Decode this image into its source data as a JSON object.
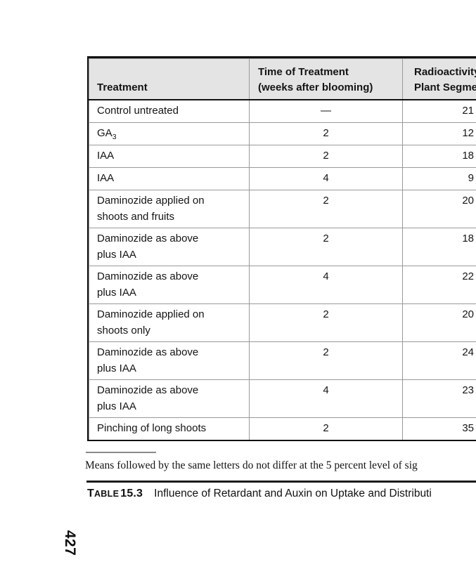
{
  "page_number": "427",
  "table": {
    "header": {
      "col1": "Treatment",
      "col2_line1": "Time of Treatment",
      "col2_line2": "(weeks after blooming)",
      "col3_line1": "Radioactivity",
      "col3_line2": "Plant Segme"
    },
    "rows": [
      {
        "t1": "Control untreated",
        "sub": "",
        "t2": "",
        "time": "—",
        "value": "21"
      },
      {
        "t1": "GA",
        "sub": "3",
        "t2": "",
        "time": "2",
        "value": "12"
      },
      {
        "t1": "IAA",
        "sub": "",
        "t2": "",
        "time": "2",
        "value": "18"
      },
      {
        "t1": "IAA",
        "sub": "",
        "t2": "",
        "time": "4",
        "value": "9"
      },
      {
        "t1": "Daminozide applied on",
        "sub": "",
        "t2": "shoots and fruits",
        "time": "2",
        "value": "20"
      },
      {
        "t1": "Daminozide as above",
        "sub": "",
        "t2": "plus IAA",
        "time": "2",
        "value": "18"
      },
      {
        "t1": "Daminozide as above",
        "sub": "",
        "t2": "plus IAA",
        "time": "4",
        "value": "22"
      },
      {
        "t1": "Daminozide applied on",
        "sub": "",
        "t2": "shoots only",
        "time": "2",
        "value": "20"
      },
      {
        "t1": "Daminozide as above",
        "sub": "",
        "t2": "plus IAA",
        "time": "2",
        "value": "24"
      },
      {
        "t1": "Daminozide as above",
        "sub": "",
        "t2": "plus IAA",
        "time": "4",
        "value": "23"
      },
      {
        "t1": "Pinching of long shoots",
        "sub": "",
        "t2": "",
        "time": "2",
        "value": "35"
      }
    ],
    "footnote": "Means followed by the same letters do not differ at the 5 percent level of sig",
    "caption": {
      "initial": "T",
      "rest": "ABLE",
      "number": "15.3",
      "title": "Influence of Retardant and Auxin on Uptake and Distributi"
    }
  }
}
